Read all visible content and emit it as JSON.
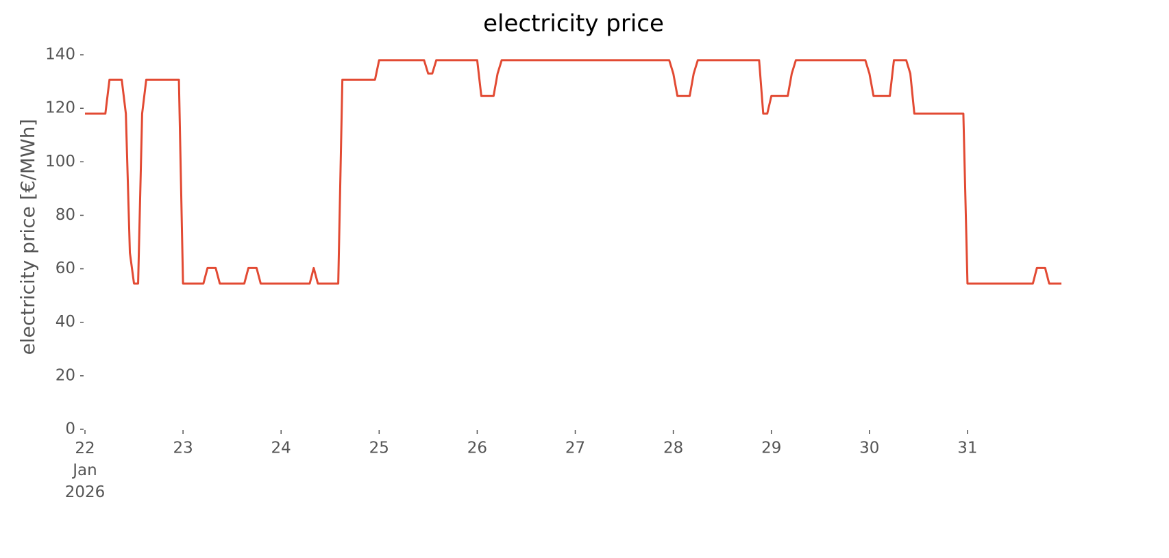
{
  "chart_data": {
    "type": "line",
    "title": "electricity price",
    "y_label": "electricity price [€/MWh]",
    "x": [
      22,
      22.208,
      22.25,
      22.375,
      22.417,
      22.458,
      22.5,
      22.542,
      22.583,
      22.625,
      22.958,
      23,
      23.208,
      23.25,
      23.333,
      23.375,
      23.625,
      23.667,
      23.75,
      23.792,
      24.292,
      24.333,
      24.375,
      24.583,
      24.625,
      24.958,
      25,
      25.458,
      25.5,
      25.542,
      25.583,
      26,
      26.042,
      26.167,
      26.208,
      26.25,
      27.958,
      28,
      28.042,
      28.167,
      28.208,
      28.25,
      28.875,
      28.917,
      28.958,
      29,
      29.167,
      29.208,
      29.25,
      29.958,
      30,
      30.042,
      30.208,
      30.25,
      30.375,
      30.417,
      30.458,
      30.958,
      31,
      31.667,
      31.708,
      31.792,
      31.833,
      31.958
    ],
    "series": [
      {
        "name": "electricity price",
        "color": "#e24a33",
        "values": [
          118,
          118,
          130.7,
          130.7,
          118,
          66,
          54.5,
          54.5,
          118,
          130.7,
          130.7,
          54.5,
          54.5,
          60.3,
          60.3,
          54.5,
          54.5,
          60.3,
          60.3,
          54.5,
          54.5,
          60.3,
          54.5,
          54.5,
          130.7,
          130.7,
          138,
          138,
          133,
          133,
          138,
          138,
          124.6,
          124.6,
          133,
          138,
          138,
          133,
          124.6,
          124.6,
          133,
          138,
          138,
          118,
          118,
          124.6,
          124.6,
          133,
          138,
          138,
          133,
          124.6,
          124.6,
          138,
          138,
          133,
          118,
          118,
          54.5,
          54.5,
          60.3,
          60.3,
          54.5,
          54.5
        ]
      }
    ],
    "xlim": [
      22,
      31.958
    ],
    "xticks": [
      {
        "value": 22,
        "label": "22\nJan\n2026"
      },
      23,
      24,
      25,
      26,
      27,
      28,
      29,
      30,
      31
    ],
    "ylim": [
      0,
      145
    ],
    "yticks": [
      0,
      20,
      40,
      60,
      80,
      100,
      120,
      140
    ],
    "grid": false
  }
}
